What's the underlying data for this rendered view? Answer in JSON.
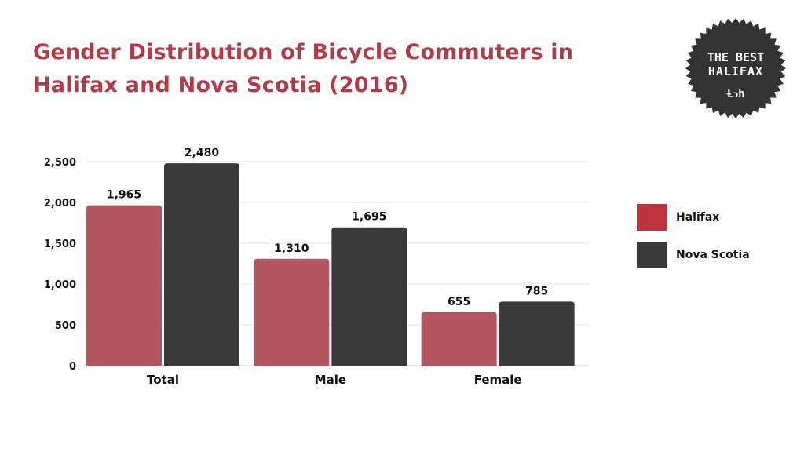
{
  "colors": {
    "title": "#b23b48",
    "halifax": "#b25760",
    "nova_scotia": "#3a3a3a",
    "legend_halifax": "#c0323d",
    "logo_bg": "#333333"
  },
  "logo": {
    "line1": "THE BEST",
    "line2": "HALIFAX",
    "mark": "Ƚↄh"
  },
  "chart_data": {
    "type": "bar",
    "title": [
      "Gender Distribution of Bicycle Commuters in",
      "Halifax and Nova Scotia (2016)"
    ],
    "categories": [
      "Total",
      "Male",
      "Female"
    ],
    "series": [
      {
        "name": "Halifax",
        "values": [
          1965,
          1310,
          655
        ],
        "labels": [
          "1,965",
          "1,310",
          "655"
        ]
      },
      {
        "name": "Nova Scotia",
        "values": [
          2480,
          1695,
          785
        ],
        "labels": [
          "2,480",
          "1,695",
          "785"
        ]
      }
    ],
    "ylim": [
      0,
      2500
    ],
    "yticks": [
      0,
      500,
      1000,
      1500,
      2000,
      2500
    ],
    "ytick_labels": [
      "0",
      "500",
      "1,000",
      "1,500",
      "2,000",
      "2,500"
    ],
    "grid": true,
    "legend_position": "right"
  }
}
